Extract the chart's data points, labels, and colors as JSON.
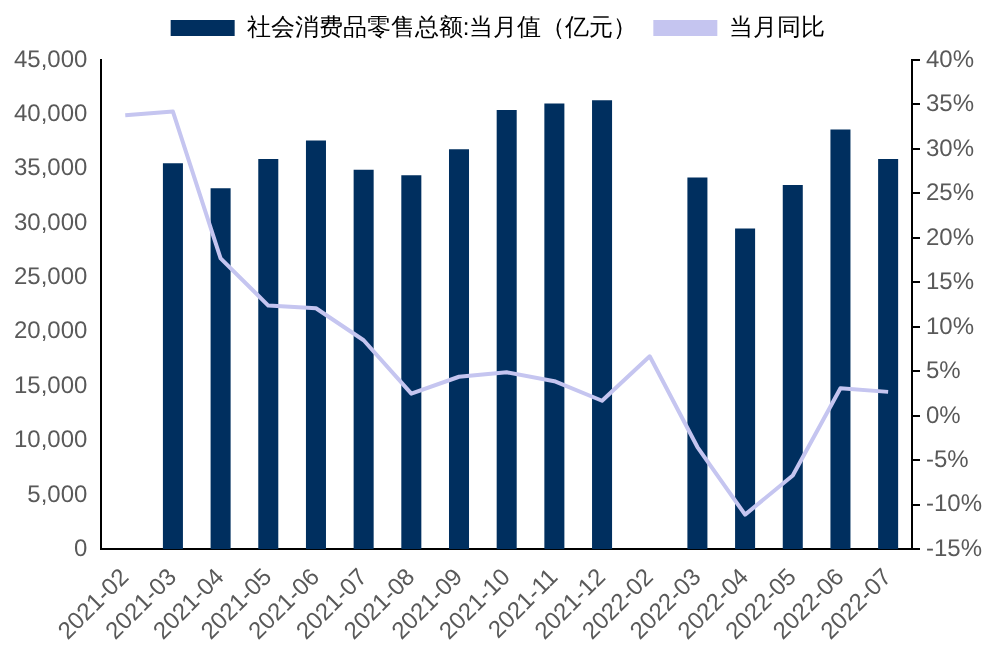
{
  "chart_data": {
    "type": "bar",
    "categories": [
      "2021-02",
      "2021-03",
      "2021-04",
      "2021-05",
      "2021-06",
      "2021-07",
      "2021-08",
      "2021-09",
      "2021-10",
      "2021-11",
      "2021-12",
      "2022-02",
      "2022-03",
      "2022-04",
      "2022-05",
      "2022-06",
      "2022-07"
    ],
    "series": [
      {
        "name": "社会消费品零售总额:当月值（亿元）",
        "color": "#002f5f",
        "values": [
          null,
          35500,
          33200,
          35900,
          37600,
          34900,
          34400,
          36800,
          40400,
          41000,
          41300,
          null,
          34200,
          29500,
          33500,
          38600,
          35900
        ]
      },
      {
        "name": "当月同比",
        "type": "line",
        "axis": "y2",
        "color": "#c5c5f0",
        "values": [
          33.8,
          34.2,
          17.7,
          12.4,
          12.1,
          8.5,
          2.5,
          4.4,
          4.9,
          3.9,
          1.7,
          6.7,
          -3.5,
          -11.1,
          -6.7,
          3.1,
          2.7
        ]
      }
    ],
    "ylim": [
      0,
      45000
    ],
    "yticks": [
      {
        "value": 0,
        "label": "0"
      },
      {
        "value": 5000,
        "label": "5,000"
      },
      {
        "value": 10000,
        "label": "10,000"
      },
      {
        "value": 15000,
        "label": "15,000"
      },
      {
        "value": 20000,
        "label": "20,000"
      },
      {
        "value": 25000,
        "label": "25,000"
      },
      {
        "value": 30000,
        "label": "30,000"
      },
      {
        "value": 35000,
        "label": "35,000"
      },
      {
        "value": 40000,
        "label": "40,000"
      },
      {
        "value": 45000,
        "label": "45,000"
      }
    ],
    "y2lim": [
      -15,
      40
    ],
    "y2ticks": [
      {
        "value": -15,
        "label": "-15%"
      },
      {
        "value": -10,
        "label": "-10%"
      },
      {
        "value": -5,
        "label": "-5%"
      },
      {
        "value": 0,
        "label": "0%"
      },
      {
        "value": 5,
        "label": "5%"
      },
      {
        "value": 10,
        "label": "10%"
      },
      {
        "value": 15,
        "label": "15%"
      },
      {
        "value": 20,
        "label": "20%"
      },
      {
        "value": 25,
        "label": "25%"
      },
      {
        "value": 30,
        "label": "30%"
      },
      {
        "value": 35,
        "label": "35%"
      },
      {
        "value": 40,
        "label": "40%"
      }
    ],
    "grid": false,
    "legend": "top",
    "marker": "none"
  }
}
